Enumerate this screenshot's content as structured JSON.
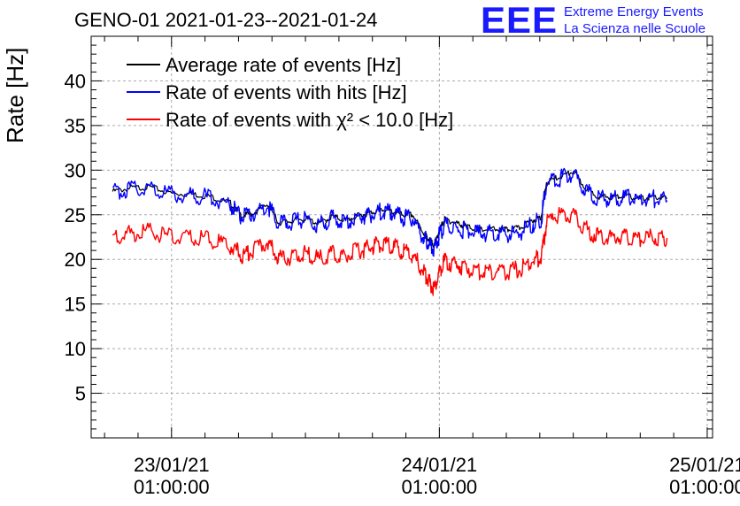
{
  "header": {
    "title": "GENO-01 2021-01-23--2021-01-24",
    "logo": "EEE",
    "org_line1": "Extreme Energy Events",
    "org_line2": "La Scienza nelle Scuole"
  },
  "chart_data": {
    "type": "line",
    "ylabel": "Rate [Hz]",
    "ylim": [
      0,
      45
    ],
    "xlim": [
      -0.3,
      2.02
    ],
    "yticks": [
      5,
      10,
      15,
      20,
      25,
      30,
      35,
      40
    ],
    "xticks": [
      {
        "value": 0,
        "line1": "23/01/21",
        "line2": "01:00:00"
      },
      {
        "value": 1,
        "line1": "24/01/21",
        "line2": "01:00:00"
      },
      {
        "value": 2,
        "line1": "25/01/21",
        "line2": "01:00:00"
      }
    ],
    "grid": true,
    "legend_position": "top-left",
    "series": [
      {
        "name": "Average rate of events [Hz]",
        "color": "#000000",
        "x": [
          -0.22,
          -0.15,
          -0.08,
          0.0,
          0.08,
          0.15,
          0.22,
          0.26,
          0.3,
          0.36,
          0.4,
          0.45,
          0.5,
          0.55,
          0.6,
          0.65,
          0.7,
          0.74,
          0.78,
          0.82,
          0.86,
          0.9,
          0.94,
          0.96,
          0.98,
          1.0,
          1.02,
          1.06,
          1.1,
          1.15,
          1.2,
          1.25,
          1.3,
          1.35,
          1.38,
          1.4,
          1.45,
          1.5,
          1.55,
          1.6,
          1.65,
          1.7,
          1.75,
          1.8,
          1.85
        ],
        "values": [
          27.6,
          28.0,
          28.1,
          27.4,
          27.3,
          27.0,
          26.3,
          24.9,
          25.1,
          26.2,
          24.1,
          24.3,
          24.6,
          24.0,
          24.8,
          24.4,
          24.9,
          25.2,
          25.6,
          25.4,
          25.0,
          25.0,
          23.0,
          22.3,
          21.6,
          23.3,
          24.5,
          24.1,
          23.7,
          23.3,
          23.4,
          23.3,
          23.5,
          24.4,
          24.8,
          28.6,
          29.3,
          29.8,
          27.8,
          27.0,
          27.0,
          27.1,
          26.8,
          27.0,
          26.8
        ]
      },
      {
        "name": "Rate of events with hits [Hz]",
        "color": "#0000ff",
        "x": [
          -0.22,
          -0.15,
          -0.08,
          0.0,
          0.08,
          0.15,
          0.22,
          0.26,
          0.3,
          0.36,
          0.4,
          0.45,
          0.5,
          0.55,
          0.6,
          0.65,
          0.7,
          0.74,
          0.78,
          0.82,
          0.86,
          0.9,
          0.94,
          0.96,
          0.98,
          1.0,
          1.02,
          1.06,
          1.1,
          1.15,
          1.2,
          1.25,
          1.3,
          1.35,
          1.38,
          1.4,
          1.45,
          1.5,
          1.55,
          1.6,
          1.65,
          1.7,
          1.75,
          1.8,
          1.85
        ],
        "values": [
          27.5,
          27.9,
          28.0,
          27.3,
          27.2,
          26.9,
          26.2,
          24.7,
          25.0,
          26.0,
          24.0,
          24.2,
          24.5,
          23.8,
          24.6,
          24.2,
          24.8,
          25.0,
          25.4,
          25.2,
          24.7,
          24.5,
          22.5,
          21.8,
          21.0,
          22.8,
          23.8,
          23.5,
          23.2,
          22.9,
          23.0,
          22.8,
          23.0,
          24.0,
          24.4,
          28.4,
          29.1,
          29.6,
          27.6,
          26.8,
          26.8,
          26.9,
          26.6,
          26.8,
          26.6
        ]
      },
      {
        "name": "Rate of events with χ² < 10.0 [Hz]",
        "color": "#ff0000",
        "x": [
          -0.22,
          -0.15,
          -0.08,
          0.0,
          0.08,
          0.15,
          0.22,
          0.26,
          0.3,
          0.36,
          0.4,
          0.45,
          0.5,
          0.55,
          0.6,
          0.65,
          0.7,
          0.74,
          0.78,
          0.82,
          0.86,
          0.9,
          0.94,
          0.96,
          0.98,
          1.0,
          1.02,
          1.06,
          1.1,
          1.15,
          1.2,
          1.25,
          1.3,
          1.35,
          1.38,
          1.4,
          1.45,
          1.5,
          1.55,
          1.6,
          1.65,
          1.7,
          1.75,
          1.8,
          1.85
        ],
        "values": [
          22.5,
          22.9,
          23.1,
          22.5,
          22.4,
          22.2,
          21.5,
          20.5,
          20.9,
          22.0,
          20.1,
          20.3,
          20.6,
          20.0,
          20.6,
          20.4,
          21.0,
          21.3,
          21.8,
          21.5,
          21.0,
          20.5,
          18.7,
          17.6,
          16.6,
          18.5,
          19.8,
          19.4,
          19.1,
          18.6,
          18.7,
          18.6,
          18.9,
          19.8,
          20.3,
          24.0,
          25.2,
          25.0,
          23.3,
          22.5,
          22.5,
          22.6,
          22.3,
          22.5,
          22.4
        ]
      }
    ]
  }
}
